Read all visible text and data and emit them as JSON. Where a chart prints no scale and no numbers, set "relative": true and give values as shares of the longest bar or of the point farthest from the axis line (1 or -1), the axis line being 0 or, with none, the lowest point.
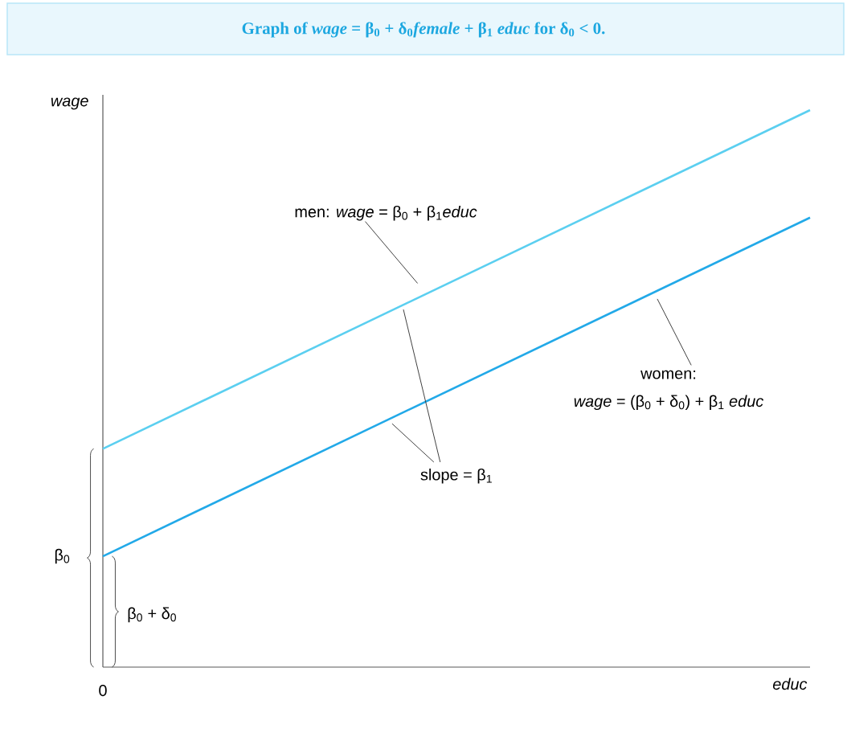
{
  "chart_data": {
    "type": "line",
    "title": "Graph of *wage* = β$_{0}$ + δ$_{0}$*female* + β$_{1}$ *educ* for δ$_{0}$ < 0.",
    "xlabel": "educ",
    "ylabel": "wage",
    "relative": true,
    "categories": [
      null,
      null
    ],
    "series": [
      {
        "color": "#5bcff0",
        "values": [
          0.392,
          1
        ]
      },
      {
        "color": "#22a9e8",
        "values": [
          0.199,
          0.807
        ]
      }
    ],
    "annotations": [
      "men: *wage* = β$_{0}$ + β$_{1}$*educ*",
      "women:",
      "*wage* = (β$_{0}$ + δ$_{0}$) + β$_{1}$ *educ*",
      "slope = β$_{1}$",
      "β$_{0}$",
      "β$_{0}$ + δ$_{0}$",
      "0"
    ]
  }
}
